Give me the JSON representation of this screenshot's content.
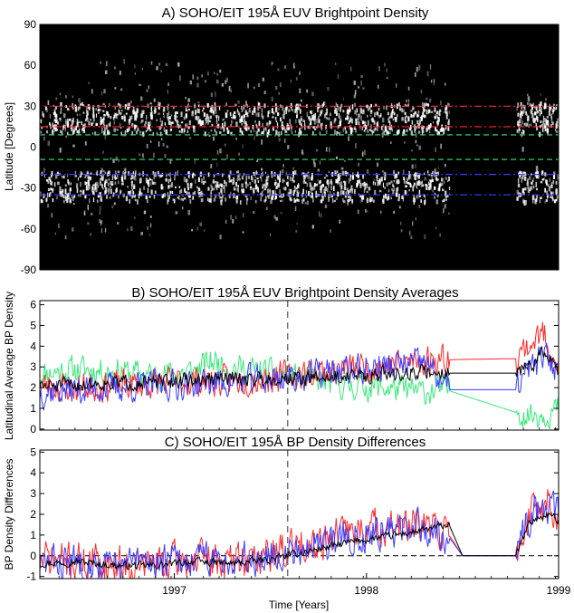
{
  "chart_data": [
    {
      "type": "heatmap",
      "title": "A) SOHO/EIT 195Å EUV Brightpoint Density",
      "ylabel": "Latitude [Degrees]",
      "xlim": [
        1996.3,
        1999.0
      ],
      "ylim": [
        -90,
        90
      ],
      "yticks": [
        -90,
        -60,
        -30,
        0,
        30,
        60,
        90
      ],
      "colors": {
        "background": "#000000",
        "points": "#ffffff"
      },
      "lines": [
        {
          "color": "#ff2a2a",
          "style": "dash-dot",
          "y": 30
        },
        {
          "color": "#ff2a2a",
          "style": "dash-dot",
          "y": 15
        },
        {
          "color": "#39e87a",
          "style": "dashed",
          "y": 9
        },
        {
          "color": "#39e87a",
          "style": "dashed",
          "y": -9
        },
        {
          "color": "#3b3bff",
          "style": "dash-dot",
          "y": -20
        },
        {
          "color": "#3b3bff",
          "style": "dash-dot",
          "y": -35
        }
      ],
      "data_gap": [
        1998.43,
        1998.78
      ],
      "band_lat": [
        22,
        -28
      ]
    },
    {
      "type": "line",
      "title": "B) SOHO/EIT 195Å EUV Brightpoint Density Averages",
      "ylabel": "Latitudinal Average BP Density",
      "xlim": [
        1996.3,
        1999.0
      ],
      "ylim": [
        -0.05,
        6.2
      ],
      "yticks": [
        0,
        1,
        2,
        3,
        4,
        5,
        6
      ],
      "vline_x": 1997.59,
      "series": [
        {
          "color": "#39e87a",
          "x": [
            1996.3,
            1996.5,
            1996.7,
            1996.9,
            1997.1,
            1997.2,
            1997.3,
            1997.5,
            1997.7,
            1997.9,
            1998.1,
            1998.3,
            1998.43,
            1998.78,
            1998.85,
            1998.95,
            1999.0
          ],
          "y": [
            2.6,
            2.8,
            2.7,
            2.5,
            2.7,
            3.2,
            2.9,
            2.6,
            2.3,
            2.0,
            1.9,
            1.7,
            1.85,
            0.8,
            0.6,
            0.7,
            0.9
          ],
          "noise": 0.55,
          "seed": 11
        },
        {
          "color": "#ff2a2a",
          "x": [
            1996.3,
            1996.5,
            1996.7,
            1996.9,
            1997.1,
            1997.3,
            1997.5,
            1997.7,
            1997.9,
            1998.1,
            1998.3,
            1998.43,
            1998.78,
            1998.85,
            1998.92,
            1999.0
          ],
          "y": [
            2.0,
            1.9,
            2.0,
            2.1,
            2.2,
            2.2,
            2.4,
            2.6,
            2.8,
            3.0,
            3.2,
            3.35,
            3.4,
            4.0,
            4.5,
            3.0
          ],
          "noise": 0.6,
          "seed": 23
        },
        {
          "color": "#3b3bff",
          "x": [
            1996.3,
            1996.5,
            1996.7,
            1996.9,
            1997.1,
            1997.3,
            1997.5,
            1997.7,
            1997.9,
            1998.1,
            1998.3,
            1998.43,
            1998.78,
            1998.85,
            1998.92,
            1999.0
          ],
          "y": [
            1.7,
            1.8,
            1.9,
            2.0,
            2.1,
            2.2,
            2.3,
            2.5,
            2.7,
            2.9,
            3.1,
            1.9,
            1.9,
            2.8,
            3.4,
            2.8
          ],
          "noise": 0.6,
          "seed": 37
        },
        {
          "color": "#000000",
          "x": [
            1996.3,
            1996.5,
            1996.7,
            1996.9,
            1997.1,
            1997.3,
            1997.5,
            1997.7,
            1997.9,
            1998.1,
            1998.3,
            1998.43,
            1998.78,
            1998.85,
            1998.92,
            1999.0
          ],
          "y": [
            2.0,
            2.1,
            2.2,
            2.2,
            2.3,
            2.4,
            2.4,
            2.4,
            2.5,
            2.6,
            2.7,
            2.7,
            2.7,
            3.0,
            3.6,
            2.8
          ],
          "noise": 0.3,
          "seed": 51
        }
      ]
    },
    {
      "type": "line",
      "title": "C) SOHO/EIT 195Å BP Density Differences",
      "xlabel": "Time [Years]",
      "ylabel": "BP Density Differences",
      "xlim": [
        1996.3,
        1999.0
      ],
      "ylim": [
        -1.1,
        5.1
      ],
      "yticks": [
        -1,
        0,
        1,
        2,
        3,
        4,
        5
      ],
      "xticks": [
        1997,
        1998,
        1999
      ],
      "vline_x": 1997.59,
      "hline_y": 0,
      "series": [
        {
          "color": "#ff2a2a",
          "x": [
            1996.3,
            1996.5,
            1996.7,
            1996.9,
            1997.1,
            1997.3,
            1997.5,
            1997.7,
            1997.9,
            1998.1,
            1998.3,
            1998.43,
            1998.5,
            1998.7,
            1998.78,
            1998.85,
            1998.95,
            1999.0
          ],
          "y": [
            -0.3,
            -0.4,
            -0.5,
            -0.5,
            -0.3,
            -0.4,
            -0.1,
            0.6,
            1.0,
            1.3,
            1.2,
            1.0,
            0.0,
            0.0,
            0.0,
            2.0,
            2.5,
            2.0
          ],
          "noise": 0.75,
          "seed": 71
        },
        {
          "color": "#3b3bff",
          "x": [
            1996.3,
            1996.5,
            1996.7,
            1996.9,
            1997.1,
            1997.3,
            1997.5,
            1997.7,
            1997.9,
            1998.1,
            1998.3,
            1998.43,
            1998.5,
            1998.7,
            1998.78,
            1998.85,
            1998.95,
            1999.0
          ],
          "y": [
            -0.5,
            -0.4,
            -0.6,
            -0.4,
            -0.3,
            -0.3,
            -0.1,
            0.4,
            0.8,
            1.1,
            1.2,
            0.9,
            0.0,
            0.0,
            0.0,
            1.8,
            2.2,
            1.8
          ],
          "noise": 0.7,
          "seed": 83
        },
        {
          "color": "#000000",
          "x": [
            1996.3,
            1996.5,
            1996.7,
            1996.9,
            1997.1,
            1997.3,
            1997.5,
            1997.7,
            1997.9,
            1998.1,
            1998.3,
            1998.43,
            1998.5,
            1998.7,
            1998.78,
            1998.85,
            1998.95,
            1999.0
          ],
          "y": [
            -0.4,
            -0.3,
            -0.5,
            -0.5,
            -0.3,
            -0.4,
            -0.2,
            0.2,
            0.6,
            0.9,
            1.2,
            1.5,
            0.0,
            0.0,
            0.0,
            1.6,
            2.0,
            1.6
          ],
          "noise": 0.15,
          "seed": 97
        }
      ]
    }
  ]
}
